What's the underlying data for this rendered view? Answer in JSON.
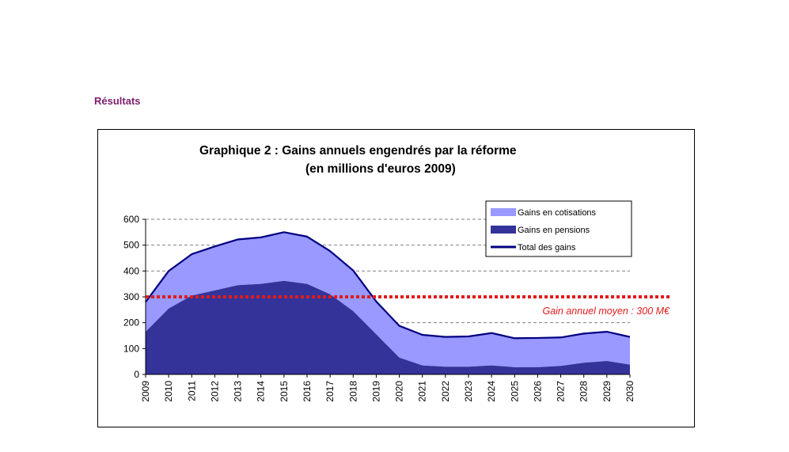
{
  "page": {
    "section_heading": "Résultats"
  },
  "chart_data": {
    "type": "area",
    "title_line1": "Graphique 2 :  Gains annuels engendrés par la réforme",
    "title_line2": "(en millions d'euros 2009)",
    "categories": [
      "2009",
      "2010",
      "2011",
      "2012",
      "2013",
      "2014",
      "2015",
      "2016",
      "2017",
      "2018",
      "2019",
      "2020",
      "2021",
      "2022",
      "2023",
      "2024",
      "2025",
      "2026",
      "2027",
      "2028",
      "2029",
      "2030"
    ],
    "series": [
      {
        "name": "Gains en pensions",
        "values": [
          165,
          255,
          305,
          325,
          345,
          350,
          362,
          350,
          310,
          245,
          155,
          65,
          35,
          30,
          30,
          35,
          28,
          28,
          33,
          45,
          52,
          38
        ]
      },
      {
        "name": "Gains en cotisations",
        "values": [
          115,
          145,
          160,
          170,
          177,
          180,
          188,
          183,
          167,
          157,
          127,
          123,
          118,
          115,
          117,
          125,
          112,
          113,
          110,
          113,
          113,
          107
        ]
      },
      {
        "name": "Total des gains",
        "values": [
          280,
          400,
          465,
          495,
          522,
          530,
          550,
          533,
          477,
          402,
          282,
          188,
          153,
          145,
          147,
          160,
          140,
          141,
          143,
          158,
          165,
          145
        ]
      }
    ],
    "ylim": [
      0,
      600
    ],
    "yticks": [
      0,
      100,
      200,
      300,
      400,
      500,
      600
    ],
    "grid": true,
    "legend": {
      "position": "top-right",
      "items": [
        "Gains en cotisations",
        "Gains en pensions",
        "Total des gains"
      ]
    },
    "reference_line": {
      "value": 300,
      "label": "Gain annuel moyen : 300 M€"
    },
    "colors": {
      "pensions": "#333399",
      "cotisations": "#9999ff",
      "total": "#000080",
      "reference": "#e01b1b",
      "grid": "#808080"
    }
  }
}
